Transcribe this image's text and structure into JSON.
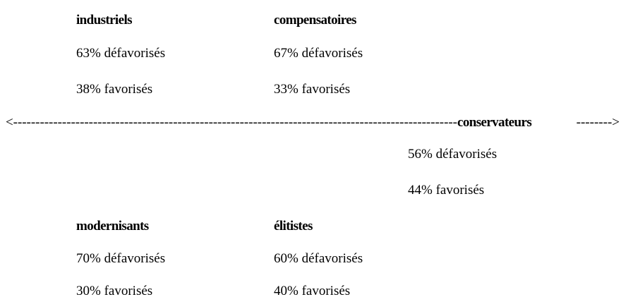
{
  "groups": [
    {
      "title": "industriels",
      "lines": [
        "63% défavorisés",
        "38% favorisés"
      ]
    },
    {
      "title": "compensatoires",
      "lines": [
        "67% défavorisés",
        "33% favorisés"
      ]
    },
    {
      "title": "modernisants",
      "lines": [
        "70% défavorisés",
        "30% favorisés"
      ]
    },
    {
      "title": "élitistes",
      "lines": [
        "60% défavorisés",
        "40% favorisés"
      ]
    }
  ],
  "axis": {
    "left": "<----------------------------------------------------------------------------------------------------",
    "label": "conservateurs",
    "right": "-------->",
    "lines": [
      "56% défavorisés",
      "44% favorisés"
    ]
  }
}
